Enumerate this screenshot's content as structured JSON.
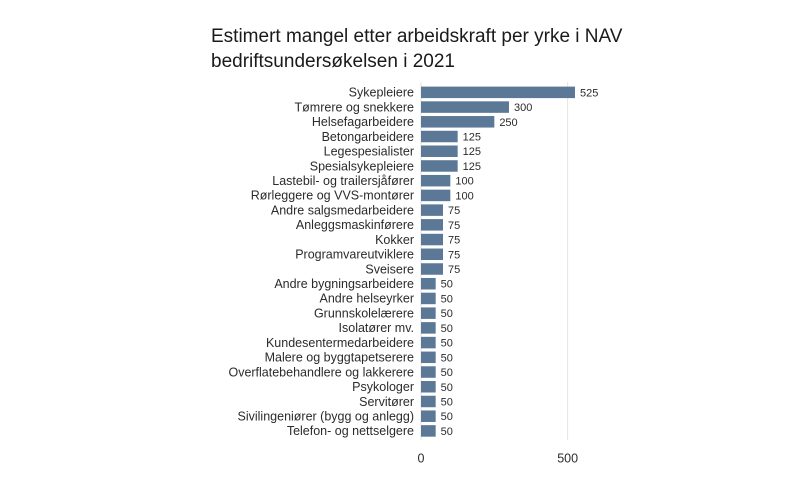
{
  "chart_data": {
    "type": "bar",
    "orientation": "horizontal",
    "title": "Estimert mangel etter arbeidskraft per yrke i NAV bedriftsundersøkelsen i 2021",
    "title_lines": [
      "Estimert mangel etter arbeidskraft per yrke i NAV",
      "bedriftsundersøkelsen i 2021"
    ],
    "categories": [
      "Sykepleiere",
      "Tømrere og snekkere",
      "Helsefagarbeidere",
      "Betongarbeidere",
      "Legespesialister",
      "Spesialsykepleiere",
      "Lastebil- og trailersjåfører",
      "Rørleggere og VVS-montører",
      "Andre salgsmedarbeidere",
      "Anleggsmaskinførere",
      "Kokker",
      "Programvareutviklere",
      "Sveisere",
      "Andre bygningsarbeidere",
      "Andre helseyrker",
      "Grunnskolelærere",
      "Isolatører mv.",
      "Kundesentermedarbeidere",
      "Malere og byggtapetserere",
      "Overflatebehandlere og lakkerere",
      "Psykologer",
      "Servitører",
      "Sivilingeniører (bygg og anlegg)",
      "Telefon- og nettselgere"
    ],
    "values": [
      525,
      300,
      250,
      125,
      125,
      125,
      100,
      100,
      75,
      75,
      75,
      75,
      75,
      50,
      50,
      50,
      50,
      50,
      50,
      50,
      50,
      50,
      50,
      50
    ],
    "xlim": [
      0,
      525
    ],
    "xticks": [
      0,
      500
    ],
    "grid": true,
    "bar_color": "#5b7897"
  }
}
